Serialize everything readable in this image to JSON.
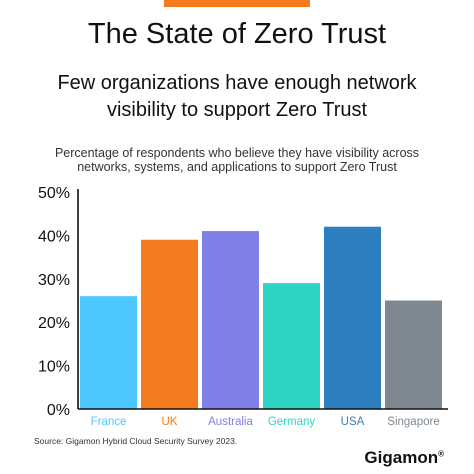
{
  "page": {
    "title": "The State of Zero Trust",
    "subtitle_line1": "Few organizations have enough network",
    "subtitle_line2": "visibility to support Zero Trust",
    "caption_line1": "Percentage of respondents who believe they have visibility across",
    "caption_line2": "networks, systems, and applications to support Zero Trust",
    "source": "Source: Gigamon Hybrid Cloud Security Survey 2023.",
    "brand": "Gigamon",
    "brand_mark": "®",
    "accent_color": "#f47b20"
  },
  "chart_data": {
    "type": "bar",
    "categories": [
      "France",
      "UK",
      "Australia",
      "Germany",
      "USA",
      "Singapore"
    ],
    "values": [
      26,
      39,
      41,
      29,
      42,
      25
    ],
    "colors": [
      "#4fc8ff",
      "#f47b20",
      "#8080e6",
      "#2dd4c4",
      "#2e7fbf",
      "#7f8890"
    ],
    "ylim": [
      0,
      50
    ],
    "yticks": [
      0,
      10,
      20,
      30,
      40,
      50
    ],
    "ytick_labels": [
      "0%",
      "10%",
      "20%",
      "30%",
      "40%",
      "50%"
    ],
    "grid": false
  }
}
